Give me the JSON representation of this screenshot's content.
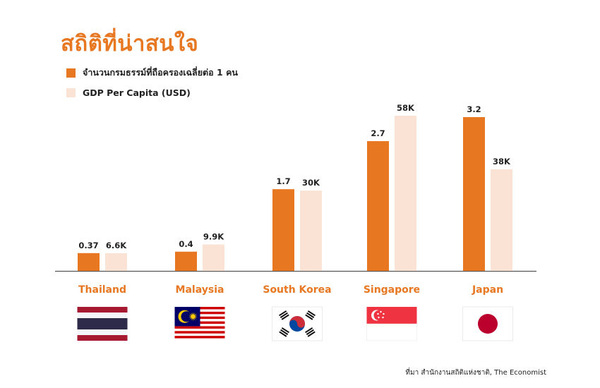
{
  "title": "สถิติที่น่าสนใจ",
  "colors": {
    "accent": "#e87722",
    "light": "#fae3d4",
    "axis": "#555555"
  },
  "chart_data": {
    "type": "bar",
    "categories": [
      "Thailand",
      "Malaysia",
      "South Korea",
      "Singapore",
      "Japan"
    ],
    "series": [
      {
        "name": "จำนวนกรมธรรม์ที่ถือครองเฉลี่ยต่อ 1 คน",
        "values": [
          0.37,
          0.4,
          1.7,
          2.7,
          3.2
        ],
        "labels": [
          "0.37",
          "0.4",
          "1.7",
          "2.7",
          "3.2"
        ],
        "color": "#e87722"
      },
      {
        "name": "GDP Per Capita (USD)",
        "values": [
          6600,
          9900,
          30000,
          58000,
          38000
        ],
        "labels": [
          "6.6K",
          "9.9K",
          "30K",
          "58K",
          "38K"
        ],
        "color": "#fae3d4"
      }
    ]
  },
  "flags": [
    "thailand-flag",
    "malaysia-flag",
    "south-korea-flag",
    "singapore-flag",
    "japan-flag"
  ],
  "source": "ที่มา สำนักงานสถิติแห่งชาติ, The Economist"
}
